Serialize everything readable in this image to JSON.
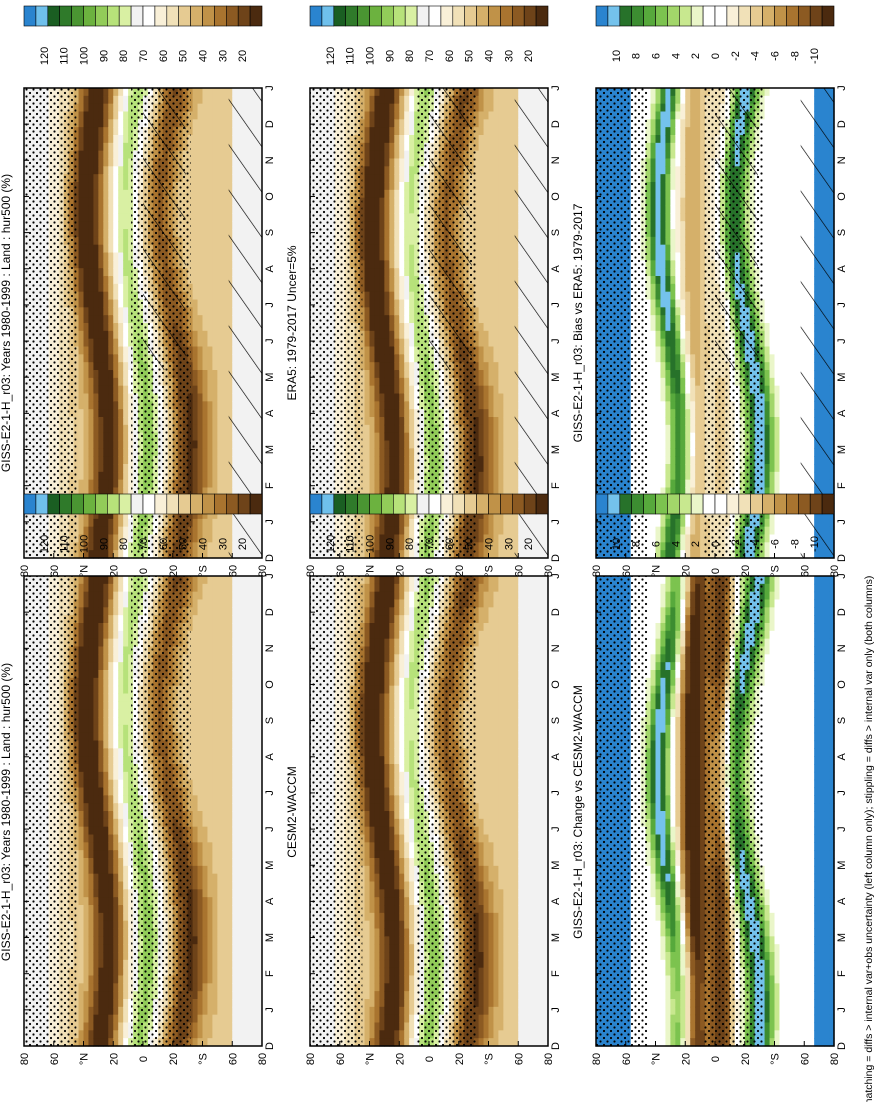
{
  "figure": {
    "footnote": "hatching = diffs > internal var+obs uncertainty (left column only); stippling = diffs > internal var only (both columns)",
    "colors": {
      "abs_scale": [
        "#4b2a0f",
        "#6e4319",
        "#8c5a22",
        "#a9742f",
        "#c09248",
        "#d5b06a",
        "#e6cb92",
        "#f1e1b8",
        "#f9f0d8",
        "#ffffff",
        "#f2f2f2",
        "#d9f0a3",
        "#b7e27a",
        "#92cc59",
        "#6cb23f",
        "#4a9532",
        "#2f7a2a",
        "#1a5e22",
        "#6fc0ec",
        "#2a84cf"
      ],
      "diff_scale": [
        "#4b2a0f",
        "#6e4319",
        "#8c5a22",
        "#a9742f",
        "#c09248",
        "#d5b06a",
        "#e6cb92",
        "#f1e1b8",
        "#f9f0d8",
        "#ffffff",
        "#ffffff",
        "#eaf6c9",
        "#c8e88f",
        "#a2d66a",
        "#7cc34f",
        "#57a93c",
        "#3c8d31",
        "#27722a",
        "#74c2ec",
        "#2a84cf"
      ]
    }
  },
  "chart_data": [
    {
      "type": "heatmap",
      "panel": "top-left",
      "title": "GISS-E2-1-H_r03: Years 1980-1999 : Land : hur500 (%)",
      "x_ticks": [
        "D",
        "J",
        "F",
        "M",
        "A",
        "M",
        "J",
        "J",
        "A",
        "S",
        "O",
        "N",
        "D",
        "J"
      ],
      "y_ticks": [
        "80",
        "60",
        "°N",
        "20",
        "0",
        "20",
        "°S",
        "60",
        "80"
      ],
      "colorbar_labels": [
        "120",
        "110",
        "100",
        "90",
        "80",
        "70",
        "60",
        "50",
        "40",
        "30",
        "20"
      ],
      "hatching": true,
      "stippling": true
    },
    {
      "type": "heatmap",
      "panel": "top-right",
      "title": "GISS-E2-1-H_r03: Years 1980-1999 : Land : hur500 (%)",
      "x_ticks": [
        "D",
        "J",
        "F",
        "M",
        "A",
        "M",
        "J",
        "J",
        "A",
        "S",
        "O",
        "N",
        "D",
        "J"
      ],
      "y_ticks": [
        "80",
        "60",
        "°N",
        "20",
        "0",
        "20",
        "°S",
        "60",
        "80"
      ],
      "colorbar_labels": [
        "120",
        "110",
        "100",
        "90",
        "80",
        "70",
        "60",
        "50",
        "40",
        "30",
        "20"
      ],
      "hatching": false,
      "stippling": true
    },
    {
      "type": "heatmap",
      "panel": "middle-left",
      "title": "ERA5: 1979-2017 Uncer=5%",
      "x_ticks": [
        "D",
        "J",
        "F",
        "M",
        "A",
        "M",
        "J",
        "J",
        "A",
        "S",
        "O",
        "N",
        "D",
        "J"
      ],
      "y_ticks": [
        "80",
        "60",
        "°N",
        "20",
        "0",
        "20",
        "°S",
        "60",
        "80"
      ],
      "colorbar_labels": [
        "120",
        "110",
        "100",
        "90",
        "80",
        "70",
        "60",
        "50",
        "40",
        "30",
        "20"
      ],
      "hatching": true,
      "stippling": true
    },
    {
      "type": "heatmap",
      "panel": "middle-right",
      "title": "CESM2-WACCM",
      "x_ticks": [
        "D",
        "J",
        "F",
        "M",
        "A",
        "M",
        "J",
        "J",
        "A",
        "S",
        "O",
        "N",
        "D",
        "J"
      ],
      "y_ticks": [
        "80",
        "60",
        "°N",
        "20",
        "0",
        "20",
        "°S",
        "60",
        "80"
      ],
      "colorbar_labels": [
        "120",
        "110",
        "100",
        "90",
        "80",
        "70",
        "60",
        "50",
        "40",
        "30",
        "20"
      ],
      "hatching": false,
      "stippling": true
    },
    {
      "type": "heatmap",
      "panel": "bottom-left",
      "title": "GISS-E2-1-H_r03: Bias vs ERA5: 1979-2017",
      "x_ticks": [
        "D",
        "J",
        "F",
        "M",
        "A",
        "M",
        "J",
        "J",
        "A",
        "S",
        "O",
        "N",
        "D",
        "J"
      ],
      "y_ticks": [
        "80",
        "60",
        "°N",
        "20",
        "0",
        "20",
        "°S",
        "60",
        "80"
      ],
      "colorbar_labels": [
        "10",
        "8",
        "6",
        "4",
        "2",
        "0",
        "-2",
        "-4",
        "-6",
        "-8",
        "-10"
      ],
      "hatching": true,
      "stippling": true
    },
    {
      "type": "heatmap",
      "panel": "bottom-right",
      "title": "GISS-E2-1-H_r03: Change vs CESM2-WACCM",
      "x_ticks": [
        "D",
        "J",
        "F",
        "M",
        "A",
        "M",
        "J",
        "J",
        "A",
        "S",
        "O",
        "N",
        "D",
        "J"
      ],
      "y_ticks": [
        "80",
        "60",
        "°N",
        "20",
        "0",
        "20",
        "°S",
        "60",
        "80"
      ],
      "colorbar_labels": [
        "10",
        "8",
        "6",
        "4",
        "2",
        "0",
        "-2",
        "-4",
        "-6",
        "-8",
        "-10"
      ],
      "hatching": false,
      "stippling": true
    }
  ]
}
